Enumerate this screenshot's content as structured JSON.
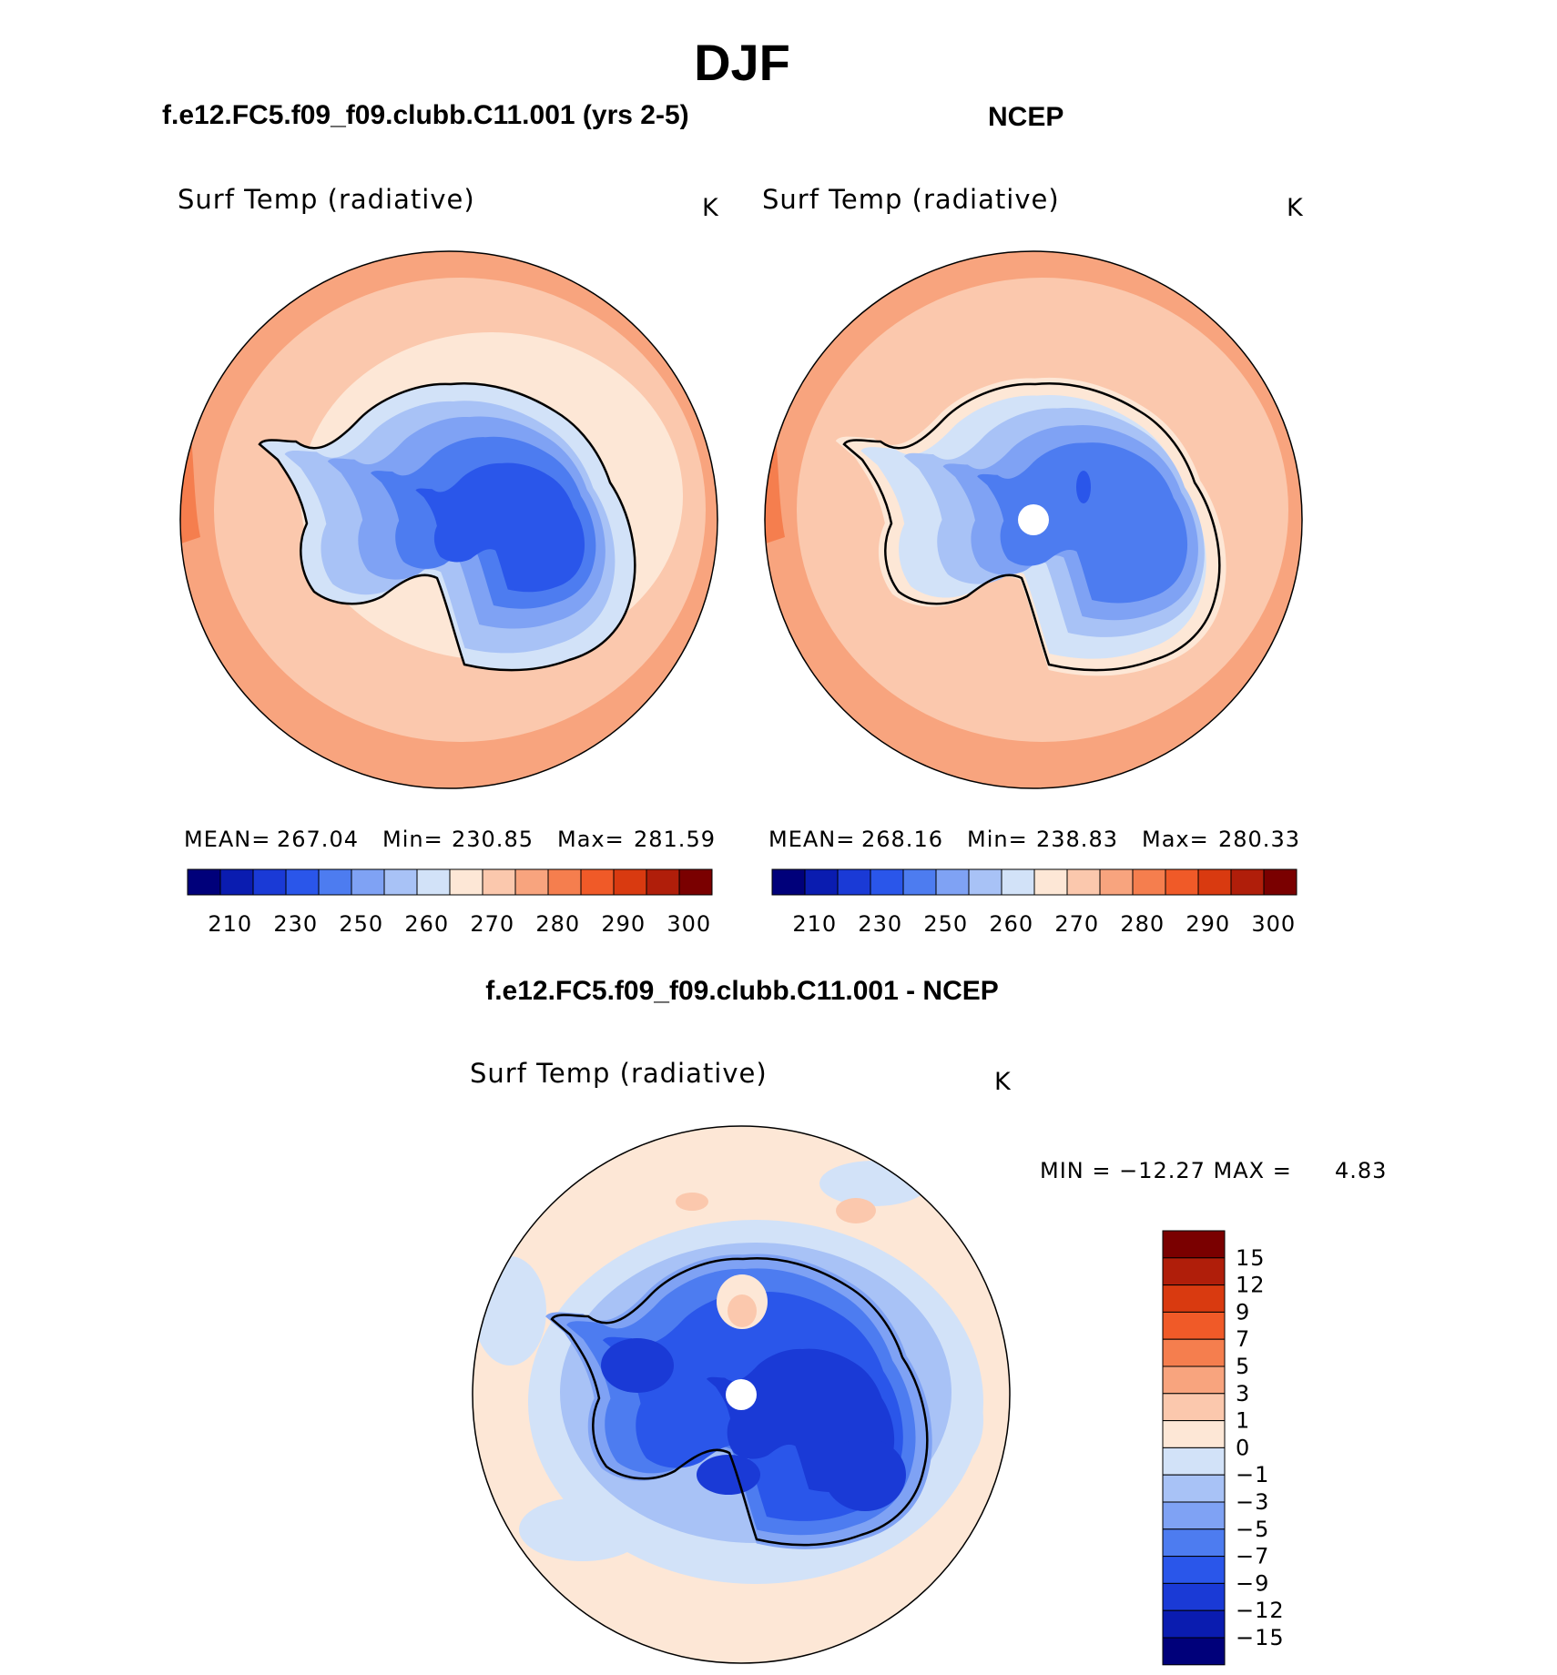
{
  "title": "DJF",
  "panels": {
    "left": {
      "header": "f.e12.FC5.f09_f09.clubb.C11.001 (yrs 2-5)",
      "variable": "Surf Temp (radiative)",
      "units": "K",
      "stats": {
        "mean_label": "MEAN=",
        "mean": "267.04",
        "min_label": "Min=",
        "min": "230.85",
        "max_label": "Max=",
        "max": "281.59"
      }
    },
    "right": {
      "header": "NCEP",
      "variable": "Surf Temp (radiative)",
      "units": "K",
      "stats": {
        "mean_label": "MEAN=",
        "mean": "268.16",
        "min_label": "Min=",
        "min": "238.83",
        "max_label": "Max=",
        "max": "280.33"
      }
    },
    "diff": {
      "header": "f.e12.FC5.f09_f09.clubb.C11.001 - NCEP",
      "variable": "Surf Temp (radiative)",
      "units": "K",
      "minmax_text": "MIN = −12.27 MAX =",
      "max_value": "4.83"
    }
  },
  "colors": {
    "abs_scale": [
      "#00007a",
      "#0a1cb0",
      "#1a3ad6",
      "#2a56ea",
      "#4d7cf0",
      "#7fa2f4",
      "#a8c2f6",
      "#d2e2f8",
      "#fde7d6",
      "#fbc8ad",
      "#f8a47e",
      "#f57e4e",
      "#f05a28",
      "#d93a10",
      "#b01e0a",
      "#7a0000"
    ],
    "diff_scale": [
      "#00007a",
      "#0a1cb0",
      "#1a3ad6",
      "#2a56ea",
      "#4d7cf0",
      "#7fa2f4",
      "#a8c2f6",
      "#d2e2f8",
      "#fde7d6",
      "#fbc8ad",
      "#f8a47e",
      "#f57e4e",
      "#f05a28",
      "#d93a10",
      "#b01e0a",
      "#7a0000"
    ]
  },
  "chart_data": [
    {
      "type": "heatmap",
      "title": "Surf Temp (radiative)",
      "subtitle": "f.e12.FC5.f09_f09.clubb.C11.001 (yrs 2-5)",
      "units": "K",
      "projection": "south polar stereographic",
      "mean": 267.04,
      "min": 230.85,
      "max": 281.59,
      "colorbar_ticks": [
        "210",
        "230",
        "250",
        "260",
        "270",
        "280",
        "290",
        "300"
      ]
    },
    {
      "type": "heatmap",
      "title": "Surf Temp (radiative)",
      "subtitle": "NCEP",
      "units": "K",
      "projection": "south polar stereographic",
      "mean": 268.16,
      "min": 238.83,
      "max": 280.33,
      "colorbar_ticks": [
        "210",
        "230",
        "250",
        "260",
        "270",
        "280",
        "290",
        "300"
      ]
    },
    {
      "type": "heatmap",
      "title": "Surf Temp (radiative)",
      "subtitle": "f.e12.FC5.f09_f09.clubb.C11.001 - NCEP",
      "units": "K",
      "projection": "south polar stereographic",
      "min": -12.27,
      "max": 4.83,
      "colorbar_ticks": [
        "15",
        "12",
        "9",
        "7",
        "5",
        "3",
        "1",
        "0",
        "−1",
        "−3",
        "−5",
        "−7",
        "−9",
        "−12",
        "−15"
      ]
    }
  ]
}
